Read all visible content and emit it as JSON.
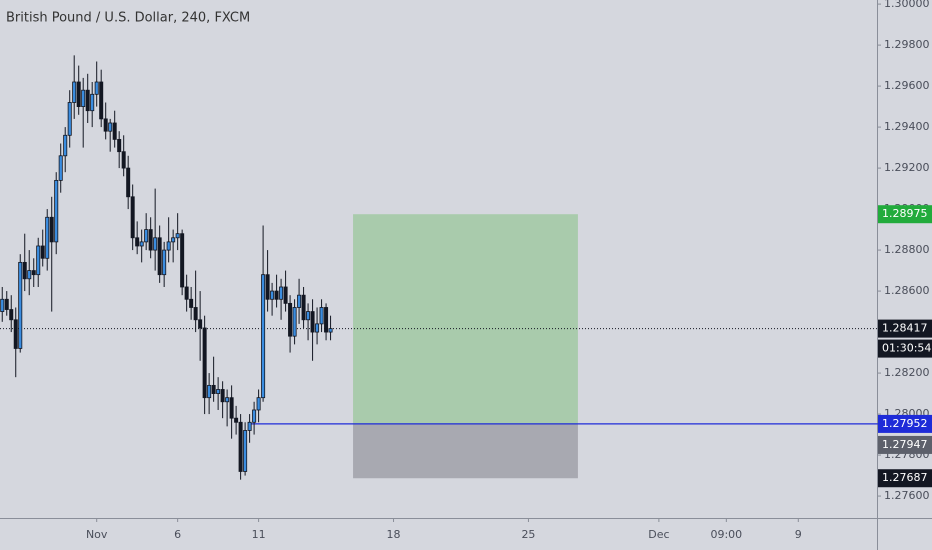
{
  "chart_data": {
    "type": "candlestick",
    "title": "British Pound / U.S. Dollar, 240, FXCM",
    "x": [
      0,
      1,
      2,
      3,
      4,
      5,
      6,
      7,
      8,
      9,
      10,
      11,
      12,
      13,
      14,
      15,
      16,
      17,
      18,
      19,
      20,
      21,
      22,
      23,
      24,
      25,
      26,
      27,
      28,
      29,
      30,
      31,
      32,
      33,
      34,
      35,
      36,
      37,
      38,
      39,
      40,
      41,
      42,
      43,
      44,
      45,
      46,
      47,
      48,
      49,
      50,
      51,
      52,
      53,
      54,
      55,
      56,
      57,
      58,
      59,
      60,
      61,
      62,
      63,
      64,
      65,
      66,
      67,
      68,
      69,
      70,
      71,
      72,
      73
    ],
    "open": [
      1.285,
      1.2856,
      1.2851,
      1.2846,
      1.2832,
      1.2874,
      1.2866,
      1.287,
      1.2868,
      1.2882,
      1.2876,
      1.2896,
      1.2884,
      1.2914,
      1.2926,
      1.2936,
      1.2952,
      1.2962,
      1.295,
      1.2958,
      1.2948,
      1.2956,
      1.2962,
      1.2944,
      1.2938,
      1.2942,
      1.2934,
      1.2928,
      1.292,
      1.2906,
      1.2886,
      1.2882,
      1.2884,
      1.289,
      1.288,
      1.2886,
      1.2868,
      1.288,
      1.2884,
      1.2886,
      1.2888,
      1.2862,
      1.2856,
      1.2852,
      1.2846,
      1.2842,
      1.2808,
      1.2814,
      1.281,
      1.2812,
      1.2806,
      1.2808,
      1.2798,
      1.2796,
      1.2772,
      1.2792,
      1.2796,
      1.2802,
      1.2808,
      1.2868,
      1.2856,
      1.286,
      1.2856,
      1.2862,
      1.2854,
      1.2838,
      1.2852,
      1.2858,
      1.2846,
      1.285,
      1.284,
      1.2844,
      1.2852,
      1.284
    ],
    "high": [
      1.2862,
      1.286,
      1.2858,
      1.2852,
      1.2878,
      1.2888,
      1.288,
      1.2876,
      1.2886,
      1.289,
      1.29,
      1.2906,
      1.2918,
      1.2932,
      1.294,
      1.2958,
      1.2975,
      1.297,
      1.2964,
      1.2966,
      1.2962,
      1.2972,
      1.2968,
      1.2952,
      1.2944,
      1.2948,
      1.2938,
      1.2936,
      1.2926,
      1.2912,
      1.2894,
      1.289,
      1.2898,
      1.2896,
      1.291,
      1.2892,
      1.2884,
      1.2896,
      1.289,
      1.2898,
      1.289,
      1.2868,
      1.2862,
      1.287,
      1.286,
      1.2848,
      1.282,
      1.2828,
      1.2818,
      1.2816,
      1.2812,
      1.2814,
      1.2804,
      1.28,
      1.2796,
      1.28,
      1.2806,
      1.2812,
      1.2892,
      1.288,
      1.2864,
      1.2868,
      1.2866,
      1.287,
      1.2858,
      1.2856,
      1.2866,
      1.2862,
      1.2854,
      1.2856,
      1.2852,
      1.2856,
      1.2854,
      1.2848
    ],
    "low": [
      1.2845,
      1.2848,
      1.284,
      1.2818,
      1.283,
      1.286,
      1.2858,
      1.2862,
      1.2862,
      1.2872,
      1.287,
      1.285,
      1.2878,
      1.2908,
      1.2918,
      1.293,
      1.2944,
      1.2946,
      1.293,
      1.2942,
      1.294,
      1.295,
      1.294,
      1.2934,
      1.2928,
      1.293,
      1.292,
      1.2916,
      1.29,
      1.288,
      1.2878,
      1.2874,
      1.288,
      1.2876,
      1.287,
      1.2864,
      1.2862,
      1.2874,
      1.2874,
      1.288,
      1.2858,
      1.285,
      1.2846,
      1.284,
      1.2826,
      1.28,
      1.28,
      1.2806,
      1.2802,
      1.2798,
      1.2794,
      1.2788,
      1.279,
      1.2768,
      1.277,
      1.2786,
      1.279,
      1.2796,
      1.2806,
      1.285,
      1.2848,
      1.2852,
      1.2846,
      1.285,
      1.283,
      1.2834,
      1.2844,
      1.2842,
      1.2836,
      1.2826,
      1.2834,
      1.284,
      1.2836,
      1.2836
    ],
    "close": [
      1.2856,
      1.2851,
      1.2846,
      1.2832,
      1.2874,
      1.2866,
      1.287,
      1.2868,
      1.2882,
      1.2876,
      1.2896,
      1.2884,
      1.2914,
      1.2926,
      1.2936,
      1.2952,
      1.2962,
      1.295,
      1.2958,
      1.2948,
      1.2956,
      1.2962,
      1.2944,
      1.2938,
      1.2942,
      1.2934,
      1.2928,
      1.292,
      1.2906,
      1.2886,
      1.2882,
      1.2884,
      1.289,
      1.288,
      1.2886,
      1.2868,
      1.288,
      1.2884,
      1.2886,
      1.2888,
      1.2862,
      1.2856,
      1.2852,
      1.2846,
      1.2842,
      1.2808,
      1.2814,
      1.281,
      1.2812,
      1.2806,
      1.2808,
      1.2798,
      1.2796,
      1.2772,
      1.2792,
      1.2796,
      1.2802,
      1.2808,
      1.2868,
      1.2856,
      1.286,
      1.2856,
      1.2862,
      1.2854,
      1.2838,
      1.2852,
      1.2858,
      1.2846,
      1.285,
      1.284,
      1.2844,
      1.2852,
      1.284,
      1.28417
    ],
    "up_color": "#3b8de0",
    "down_color": "#131722",
    "xlim": [
      -0.5,
      194.5
    ],
    "xticks": [
      {
        "value": 21,
        "label": "Nov"
      },
      {
        "value": 39,
        "label": "6"
      },
      {
        "value": 57,
        "label": "11"
      },
      {
        "value": 87,
        "label": "18"
      },
      {
        "value": 117,
        "label": "25"
      },
      {
        "value": 146,
        "label": "Dec"
      },
      {
        "value": 161,
        "label": "09:00"
      },
      {
        "value": 177,
        "label": "9"
      }
    ],
    "ylim": [
      1.27493,
      1.3002
    ],
    "yticks": [
      {
        "value": 1.3,
        "label": "1.30000"
      },
      {
        "value": 1.298,
        "label": "1.29800"
      },
      {
        "value": 1.296,
        "label": "1.29600"
      },
      {
        "value": 1.294,
        "label": "1.29400"
      },
      {
        "value": 1.292,
        "label": "1.29200"
      },
      {
        "value": 1.29,
        "label": "1.29000"
      },
      {
        "value": 1.288,
        "label": "1.28800"
      },
      {
        "value": 1.286,
        "label": "1.28600"
      },
      {
        "value": 1.284,
        "label": "1.28400"
      },
      {
        "value": 1.282,
        "label": "1.28200"
      },
      {
        "value": 1.28,
        "label": "1.28000"
      },
      {
        "value": 1.278,
        "label": "1.27800"
      },
      {
        "value": 1.276,
        "label": "1.27600"
      }
    ],
    "countdown": "01:30:54",
    "position": {
      "start": 78,
      "end": 128,
      "line_start": 55,
      "target": 1.28975,
      "entry": 1.27952,
      "stop": 1.27687,
      "target_color": "#22ab3c",
      "entry_color": "#1e2bd8",
      "stop_color": "#131722",
      "profit_fill": "#a9cbac",
      "loss_fill": "#a8a9b1"
    },
    "extra_label": {
      "value": 1.27947,
      "color": "#5d606b"
    }
  }
}
